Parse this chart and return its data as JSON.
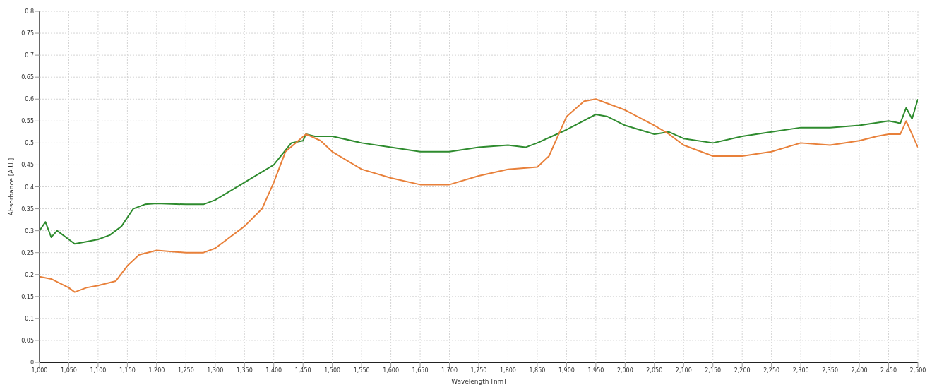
{
  "chart_data": {
    "type": "line",
    "xlabel": "Wavelength [nm]",
    "ylabel": "Absorbance [A.U.]",
    "xlim": [
      1000,
      2500
    ],
    "ylim": [
      0,
      0.8
    ],
    "xticks": [
      {
        "value": 1000,
        "label": "1,000"
      },
      {
        "value": 1050,
        "label": "1,050"
      },
      {
        "value": 1100,
        "label": "1,100"
      },
      {
        "value": 1150,
        "label": "1,150"
      },
      {
        "value": 1200,
        "label": "1,200"
      },
      {
        "value": 1250,
        "label": "1,250"
      },
      {
        "value": 1300,
        "label": "1,300"
      },
      {
        "value": 1350,
        "label": "1,350"
      },
      {
        "value": 1400,
        "label": "1,400"
      },
      {
        "value": 1450,
        "label": "1,450"
      },
      {
        "value": 1500,
        "label": "1,500"
      },
      {
        "value": 1550,
        "label": "1,550"
      },
      {
        "value": 1600,
        "label": "1,600"
      },
      {
        "value": 1650,
        "label": "1,650"
      },
      {
        "value": 1700,
        "label": "1,700"
      },
      {
        "value": 1750,
        "label": "1,750"
      },
      {
        "value": 1800,
        "label": "1,800"
      },
      {
        "value": 1850,
        "label": "1,850"
      },
      {
        "value": 1900,
        "label": "1,900"
      },
      {
        "value": 1950,
        "label": "1,950"
      },
      {
        "value": 2000,
        "label": "2,000"
      },
      {
        "value": 2050,
        "label": "2,050"
      },
      {
        "value": 2100,
        "label": "2,100"
      },
      {
        "value": 2150,
        "label": "2,150"
      },
      {
        "value": 2200,
        "label": "2,200"
      },
      {
        "value": 2250,
        "label": "2,250"
      },
      {
        "value": 2300,
        "label": "2,300"
      },
      {
        "value": 2350,
        "label": "2,350"
      },
      {
        "value": 2400,
        "label": "2,400"
      },
      {
        "value": 2450,
        "label": "2,450"
      },
      {
        "value": 2500,
        "label": "2,500"
      }
    ],
    "yticks": [
      0,
      0.05,
      0.1,
      0.15,
      0.2,
      0.25,
      0.3,
      0.35,
      0.4,
      0.45,
      0.5,
      0.55,
      0.6,
      0.65,
      0.7,
      0.75,
      0.8
    ],
    "grid": true,
    "line_style": "solid",
    "marker": "none",
    "series": [
      {
        "color": "#2e8b2e",
        "x": [
          1000,
          1010,
          1020,
          1030,
          1050,
          1060,
          1080,
          1100,
          1120,
          1140,
          1160,
          1180,
          1200,
          1250,
          1280,
          1300,
          1350,
          1400,
          1430,
          1450,
          1455,
          1470,
          1500,
          1550,
          1600,
          1650,
          1700,
          1750,
          1800,
          1830,
          1850,
          1900,
          1950,
          1970,
          2000,
          2050,
          2075,
          2100,
          2150,
          2200,
          2250,
          2300,
          2350,
          2400,
          2450,
          2470,
          2480,
          2490,
          2500
        ],
        "values": [
          0.3,
          0.32,
          0.285,
          0.3,
          0.28,
          0.27,
          0.275,
          0.28,
          0.29,
          0.31,
          0.35,
          0.36,
          0.362,
          0.36,
          0.36,
          0.37,
          0.41,
          0.45,
          0.5,
          0.505,
          0.52,
          0.515,
          0.515,
          0.5,
          0.49,
          0.48,
          0.48,
          0.49,
          0.495,
          0.49,
          0.5,
          0.53,
          0.565,
          0.56,
          0.54,
          0.52,
          0.525,
          0.51,
          0.5,
          0.515,
          0.525,
          0.535,
          0.535,
          0.54,
          0.55,
          0.545,
          0.58,
          0.555,
          0.6
        ]
      },
      {
        "color": "#e8803a",
        "x": [
          1000,
          1020,
          1050,
          1060,
          1080,
          1100,
          1130,
          1150,
          1170,
          1200,
          1250,
          1280,
          1300,
          1350,
          1380,
          1400,
          1420,
          1455,
          1480,
          1500,
          1550,
          1600,
          1650,
          1700,
          1750,
          1800,
          1850,
          1870,
          1900,
          1930,
          1950,
          2000,
          2050,
          2075,
          2100,
          2150,
          2200,
          2250,
          2300,
          2350,
          2400,
          2430,
          2450,
          2470,
          2480,
          2500
        ],
        "values": [
          0.195,
          0.19,
          0.17,
          0.16,
          0.17,
          0.175,
          0.185,
          0.22,
          0.245,
          0.255,
          0.25,
          0.25,
          0.26,
          0.31,
          0.35,
          0.41,
          0.48,
          0.52,
          0.505,
          0.48,
          0.44,
          0.42,
          0.405,
          0.405,
          0.425,
          0.44,
          0.445,
          0.47,
          0.56,
          0.595,
          0.6,
          0.575,
          0.54,
          0.52,
          0.495,
          0.47,
          0.47,
          0.48,
          0.5,
          0.495,
          0.505,
          0.515,
          0.52,
          0.52,
          0.55,
          0.49
        ]
      }
    ]
  }
}
